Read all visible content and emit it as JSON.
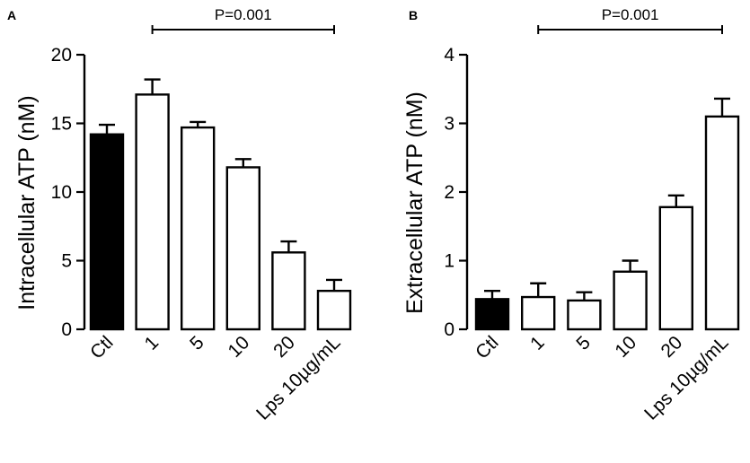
{
  "chart_data": [
    {
      "type": "bar",
      "panel": "A",
      "title": "",
      "xlabel": "",
      "ylabel": "Intracellular ATP (nM)",
      "ylim": [
        0,
        20
      ],
      "yticks": [
        0,
        5,
        10,
        15,
        20
      ],
      "categories": [
        "Ctl",
        "1",
        "5",
        "10",
        "20",
        "Lps 10µg/mL"
      ],
      "values": [
        14.2,
        17.1,
        14.7,
        11.8,
        5.6,
        2.8
      ],
      "errors": [
        0.7,
        1.1,
        0.4,
        0.6,
        0.8,
        0.8
      ],
      "bar_fill": [
        "#000000",
        "#ffffff",
        "#ffffff",
        "#ffffff",
        "#ffffff",
        "#ffffff"
      ],
      "annotation": {
        "text": "P=0.001",
        "from_category": "1",
        "to_category": "Lps 10µg/mL"
      }
    },
    {
      "type": "bar",
      "panel": "B",
      "title": "",
      "xlabel": "",
      "ylabel": "Extracellular ATP (nM)",
      "ylim": [
        0,
        4
      ],
      "yticks": [
        0,
        1,
        2,
        3,
        4
      ],
      "categories": [
        "Ctl",
        "1",
        "5",
        "10",
        "20",
        "Lps 10µg/mL"
      ],
      "values": [
        0.44,
        0.47,
        0.42,
        0.84,
        1.78,
        3.1
      ],
      "errors": [
        0.12,
        0.2,
        0.12,
        0.16,
        0.17,
        0.26
      ],
      "bar_fill": [
        "#000000",
        "#ffffff",
        "#ffffff",
        "#ffffff",
        "#ffffff",
        "#ffffff"
      ],
      "annotation": {
        "text": "P=0.001",
        "from_category": "1",
        "to_category": "Lps 10µg/mL"
      }
    }
  ]
}
